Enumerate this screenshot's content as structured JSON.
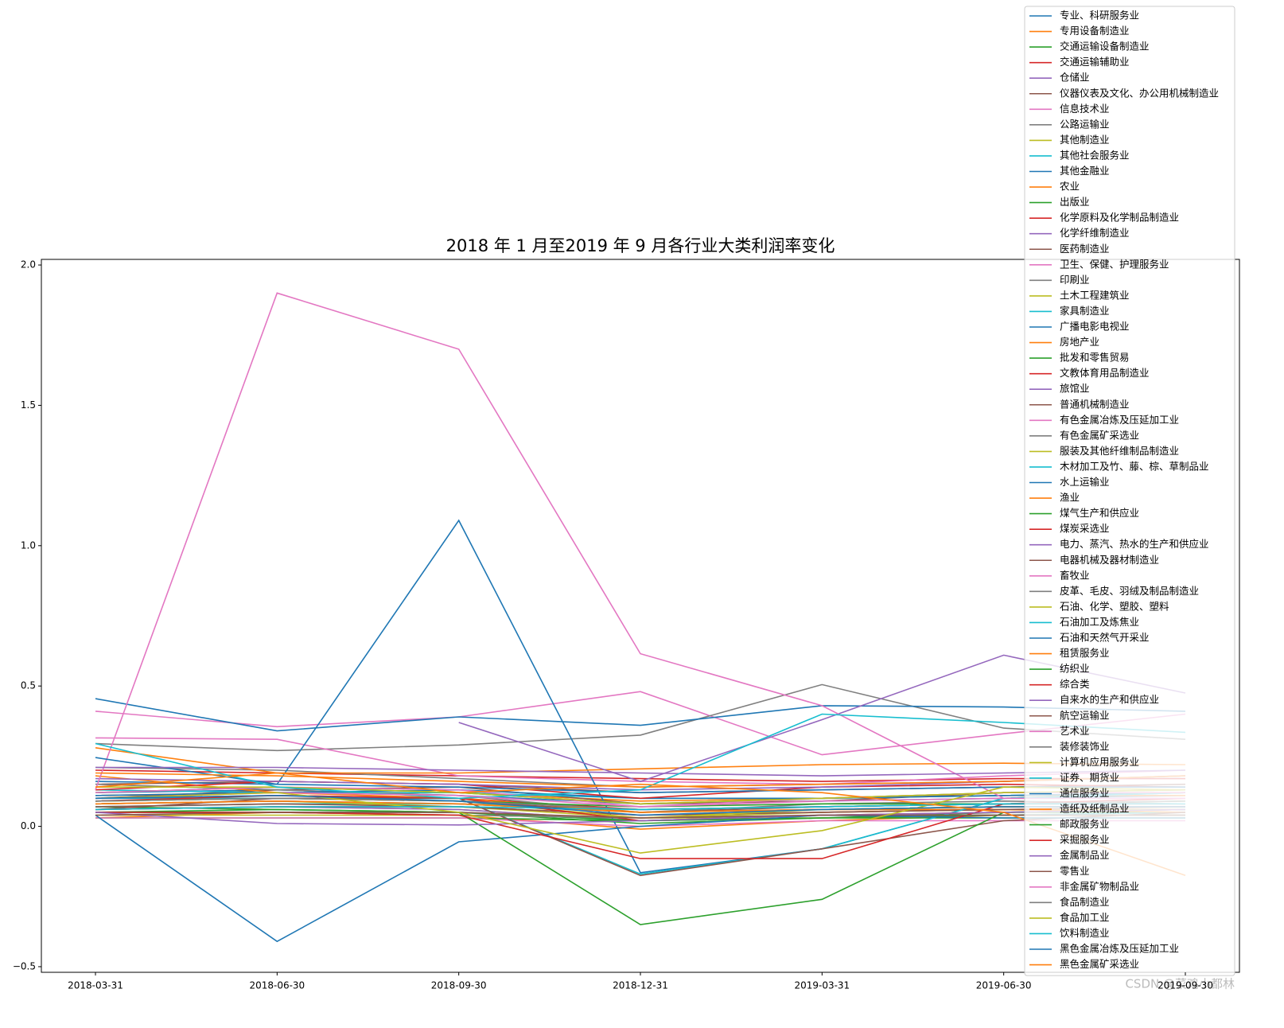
{
  "chart_data": {
    "type": "line",
    "title": "2018 年 1 月至2019 年 9 月各行业大类利润率变化",
    "categories": [
      "2018-03-31",
      "2018-06-30",
      "2018-09-30",
      "2018-12-31",
      "2019-03-31",
      "2019-06-30",
      "2019-09-30"
    ],
    "ylim": [
      -0.52,
      2.02
    ],
    "yticks": [
      {
        "value": -0.5,
        "label": "−0.5"
      },
      {
        "value": 0,
        "label": "0.0"
      },
      {
        "value": 0.5,
        "label": "0.5"
      },
      {
        "value": 1,
        "label": "1.0"
      },
      {
        "value": 1.5,
        "label": "1.5"
      },
      {
        "value": 2,
        "label": "2.0"
      }
    ],
    "grid": false,
    "legend": "upper right",
    "watermark": "CSDN @菜鸡小都林",
    "series": [
      {
        "name": "专业、科研服务业",
        "color": "#1f77b4",
        "values": [
          0.12,
          0.13,
          0.11,
          0.08,
          0.09,
          0.1,
          0.11
        ]
      },
      {
        "name": "专用设备制造业",
        "color": "#ff7f0e",
        "values": [
          0.11,
          0.12,
          0.12,
          0.09,
          0.1,
          0.11,
          0.11
        ]
      },
      {
        "name": "交通运输设备制造业",
        "color": "#2ca02c",
        "values": [
          0.07,
          0.06,
          0.05,
          0.01,
          0.03,
          0.05,
          0.05
        ]
      },
      {
        "name": "交通运输辅助业",
        "color": "#d62728",
        "values": [
          0.2,
          0.19,
          0.18,
          0.17,
          0.16,
          0.17,
          0.17
        ]
      },
      {
        "name": "仓储业",
        "color": "#9467bd",
        "values": [
          0.08,
          0.09,
          0.08,
          0.06,
          0.07,
          0.08,
          0.08
        ]
      },
      {
        "name": "仪器仪表及文化、办公用机械制造业",
        "color": "#8c564b",
        "values": [
          0.1,
          0.13,
          0.14,
          0.08,
          0.09,
          0.12,
          0.13
        ]
      },
      {
        "name": "信息技术业",
        "color": "#e377c2",
        "values": [
          0.41,
          0.355,
          0.39,
          0.48,
          0.255,
          0.33,
          0.4
        ]
      },
      {
        "name": "公路运输业",
        "color": "#7f7f7f",
        "values": [
          0.295,
          0.27,
          0.29,
          0.325,
          0.505,
          0.35,
          0.31
        ]
      },
      {
        "name": "其他制造业",
        "color": "#bcbd22",
        "values": [
          0.06,
          0.07,
          0.06,
          0.02,
          0.04,
          0.05,
          0.06
        ]
      },
      {
        "name": "其他社会服务业",
        "color": "#17becf",
        "values": [
          0.13,
          0.12,
          0.12,
          0.1,
          0.1,
          0.11,
          0.12
        ]
      },
      {
        "name": "其他金融业",
        "color": "#1f77b4",
        "values": [
          0.455,
          0.34,
          0.39,
          0.36,
          0.43,
          0.425,
          0.41
        ]
      },
      {
        "name": "农业",
        "color": "#ff7f0e",
        "values": [
          0.03,
          0.05,
          0.04,
          -0.01,
          0.02,
          0.04,
          0.05
        ]
      },
      {
        "name": "出版业",
        "color": "#2ca02c",
        "values": [
          0.12,
          0.14,
          0.12,
          0.08,
          0.1,
          0.12,
          0.12
        ]
      },
      {
        "name": "化学原料及化学制品制造业",
        "color": "#d62728",
        "values": [
          0.1,
          0.11,
          0.1,
          0.06,
          0.07,
          0.08,
          0.08
        ]
      },
      {
        "name": "化学纤维制造业",
        "color": "#9467bd",
        "values": [
          0.06,
          0.07,
          0.06,
          0.02,
          0.03,
          0.04,
          0.04
        ]
      },
      {
        "name": "医药制造业",
        "color": "#8c564b",
        "values": [
          0.15,
          0.16,
          0.15,
          0.12,
          0.13,
          0.14,
          0.15
        ]
      },
      {
        "name": "卫生、保健、护理服务业",
        "color": "#e377c2",
        "values": [
          0.315,
          0.31,
          0.18,
          0.16,
          0.15,
          0.18,
          0.2
        ]
      },
      {
        "name": "印刷业",
        "color": "#7f7f7f",
        "values": [
          0.21,
          0.2,
          0.17,
          0.14,
          0.15,
          0.16,
          0.18
        ]
      },
      {
        "name": "土木工程建筑业",
        "color": "#bcbd22",
        "values": [
          0.04,
          0.04,
          0.04,
          0.03,
          0.03,
          0.04,
          0.04
        ]
      },
      {
        "name": "家具制造业",
        "color": "#17becf",
        "values": [
          0.07,
          0.08,
          0.08,
          0.05,
          0.06,
          0.07,
          0.07
        ]
      },
      {
        "name": "广播电影电视业",
        "color": "#1f77b4",
        "values": [
          0.16,
          0.15,
          1.09,
          -0.165,
          -0.08,
          0.1,
          0.12
        ]
      },
      {
        "name": "房地产业",
        "color": "#ff7f0e",
        "values": [
          0.28,
          0.19,
          0.19,
          0.205,
          0.22,
          0.225,
          0.22
        ]
      },
      {
        "name": "批发和零售贸易",
        "color": "#2ca02c",
        "values": [
          0.03,
          0.03,
          0.03,
          0.02,
          0.03,
          0.03,
          0.03
        ]
      },
      {
        "name": "文教体育用品制造业",
        "color": "#d62728",
        "values": [
          0.06,
          0.07,
          0.07,
          0.04,
          0.05,
          0.06,
          0.06
        ]
      },
      {
        "name": "旅馆业",
        "color": "#9467bd",
        "values": [
          null,
          null,
          0.37,
          0.16,
          0.38,
          0.61,
          0.475
        ]
      },
      {
        "name": "普通机械制造业",
        "color": "#8c564b",
        "values": [
          0.09,
          0.1,
          0.09,
          0.05,
          0.07,
          0.08,
          0.08
        ]
      },
      {
        "name": "有色金属冶炼及压延加工业",
        "color": "#e377c2",
        "values": [
          0.03,
          0.03,
          0.03,
          0.0,
          0.02,
          0.02,
          0.02
        ]
      },
      {
        "name": "有色金属矿采选业",
        "color": "#7f7f7f",
        "values": [
          0.15,
          0.13,
          0.11,
          0.05,
          0.08,
          0.09,
          0.08
        ]
      },
      {
        "name": "服装及其他纤维制品制造业",
        "color": "#bcbd22",
        "values": [
          0.08,
          0.09,
          0.07,
          0.03,
          0.05,
          0.06,
          0.06
        ]
      },
      {
        "name": "木材加工及竹、藤、棕、草制品业",
        "color": "#17becf",
        "values": [
          0.05,
          0.05,
          0.05,
          0.02,
          0.04,
          0.04,
          0.05
        ]
      },
      {
        "name": "水上运输业",
        "color": "#1f77b4",
        "values": [
          0.11,
          0.12,
          0.13,
          0.1,
          0.1,
          0.11,
          0.12
        ]
      },
      {
        "name": "渔业",
        "color": "#ff7f0e",
        "values": [
          0.18,
          0.12,
          0.1,
          0.05,
          0.06,
          0.06,
          0.05
        ]
      },
      {
        "name": "煤气生产和供应业",
        "color": "#2ca02c",
        "values": [
          0.09,
          0.1,
          0.09,
          0.07,
          0.08,
          0.08,
          0.09
        ]
      },
      {
        "name": "煤炭采选业",
        "color": "#d62728",
        "values": [
          0.13,
          0.16,
          0.15,
          0.1,
          0.14,
          0.15,
          0.14
        ]
      },
      {
        "name": "电力、蒸汽、热水的生产和供应业",
        "color": "#9467bd",
        "values": [
          0.17,
          0.16,
          0.15,
          0.13,
          0.14,
          0.16,
          0.18
        ]
      },
      {
        "name": "电器机械及器材制造业",
        "color": "#8c564b",
        "values": [
          0.07,
          0.08,
          0.07,
          0.04,
          0.05,
          0.06,
          0.07
        ]
      },
      {
        "name": "畜牧业",
        "color": "#e377c2",
        "values": [
          0.13,
          1.9,
          1.7,
          0.615,
          0.43,
          0.1,
          0.1
        ]
      },
      {
        "name": "皮革、毛皮、羽绒及制品制造业",
        "color": "#7f7f7f",
        "values": [
          0.08,
          0.09,
          0.08,
          0.05,
          0.06,
          0.07,
          0.07
        ]
      },
      {
        "name": "石油、化学、塑胶、塑料",
        "color": "#bcbd22",
        "values": [
          0.09,
          0.1,
          0.09,
          0.03,
          0.06,
          0.07,
          0.07
        ]
      },
      {
        "name": "石油加工及炼焦业",
        "color": "#17becf",
        "values": [
          0.1,
          0.1,
          0.1,
          -0.17,
          -0.08,
          0.1,
          0.12
        ]
      },
      {
        "name": "石油和天然气开采业",
        "color": "#1f77b4",
        "values": [
          0.245,
          0.15,
          0.14,
          0.12,
          0.13,
          0.14,
          0.14
        ]
      },
      {
        "name": "租赁服务业",
        "color": "#ff7f0e",
        "values": [
          0.19,
          0.18,
          0.16,
          0.14,
          0.15,
          0.16,
          0.18
        ]
      },
      {
        "name": "纺织业",
        "color": "#2ca02c",
        "values": [
          0.05,
          0.06,
          0.05,
          0.02,
          0.03,
          0.04,
          0.04
        ]
      },
      {
        "name": "综合类",
        "color": "#d62728",
        "values": [
          0.09,
          0.11,
          0.1,
          0.02,
          0.04,
          0.05,
          0.06
        ]
      },
      {
        "name": "自来水的生产和供应业",
        "color": "#9467bd",
        "values": [
          0.21,
          0.21,
          0.2,
          0.19,
          0.18,
          0.19,
          0.2
        ]
      },
      {
        "name": "航空运输业",
        "color": "#8c564b",
        "values": [
          0.06,
          0.1,
          0.1,
          -0.175,
          -0.08,
          0.02,
          0.05
        ]
      },
      {
        "name": "艺术业",
        "color": "#e377c2",
        "values": [
          0.12,
          0.14,
          0.13,
          0.07,
          0.1,
          0.12,
          0.12
        ]
      },
      {
        "name": "装修装饰业",
        "color": "#7f7f7f",
        "values": [
          0.05,
          0.05,
          0.04,
          0.03,
          0.04,
          0.04,
          0.04
        ]
      },
      {
        "name": "计算机应用服务业",
        "color": "#bcbd22",
        "values": [
          0.14,
          0.14,
          0.12,
          0.08,
          0.1,
          0.12,
          0.13
        ]
      },
      {
        "name": "证券、期货业",
        "color": "#17becf",
        "values": [
          0.295,
          0.14,
          0.1,
          0.13,
          0.4,
          0.37,
          0.335
        ]
      },
      {
        "name": "通信服务业",
        "color": "#1f77b4",
        "values": [
          0.04,
          -0.41,
          -0.055,
          0.0,
          0.04,
          0.03,
          0.03
        ]
      },
      {
        "name": "造纸及纸制品业",
        "color": "#ff7f0e",
        "values": [
          0.08,
          0.09,
          0.08,
          0.05,
          0.06,
          0.07,
          0.07
        ]
      },
      {
        "name": "邮政服务业",
        "color": "#2ca02c",
        "values": [
          0.05,
          0.05,
          0.05,
          -0.35,
          -0.26,
          0.05,
          0.06
        ]
      },
      {
        "name": "采掘服务业",
        "color": "#d62728",
        "values": [
          0.05,
          0.05,
          0.04,
          -0.115,
          -0.115,
          0.08,
          0.1
        ]
      },
      {
        "name": "金属制品业",
        "color": "#9467bd",
        "values": [
          0.05,
          0.01,
          0.005,
          0.02,
          0.04,
          0.05,
          0.06
        ]
      },
      {
        "name": "零售业",
        "color": "#8c564b",
        "values": [
          0.04,
          0.05,
          0.05,
          0.03,
          0.04,
          0.04,
          0.04
        ]
      },
      {
        "name": "非金属矿物制品业",
        "color": "#e377c2",
        "values": [
          0.1,
          0.12,
          0.11,
          0.07,
          0.09,
          0.1,
          0.1
        ]
      },
      {
        "name": "食品制造业",
        "color": "#7f7f7f",
        "values": [
          0.09,
          0.1,
          0.09,
          0.06,
          0.07,
          0.08,
          0.09
        ]
      },
      {
        "name": "食品加工业",
        "color": "#bcbd22",
        "values": [
          0.1,
          0.12,
          0.05,
          -0.095,
          -0.015,
          0.14,
          0.13
        ]
      },
      {
        "name": "饮料制造业",
        "color": "#17becf",
        "values": [
          0.06,
          0.07,
          0.07,
          0.06,
          0.07,
          0.08,
          0.08
        ]
      },
      {
        "name": "黑色金属冶炼及压延加工业",
        "color": "#1f77b4",
        "values": [
          0.1,
          0.11,
          0.09,
          0.04,
          0.06,
          0.07,
          0.07
        ]
      },
      {
        "name": "黑色金属矿采选业",
        "color": "#ff7f0e",
        "values": [
          0.14,
          0.19,
          0.12,
          0.15,
          0.12,
          0.05,
          -0.175
        ]
      }
    ]
  }
}
